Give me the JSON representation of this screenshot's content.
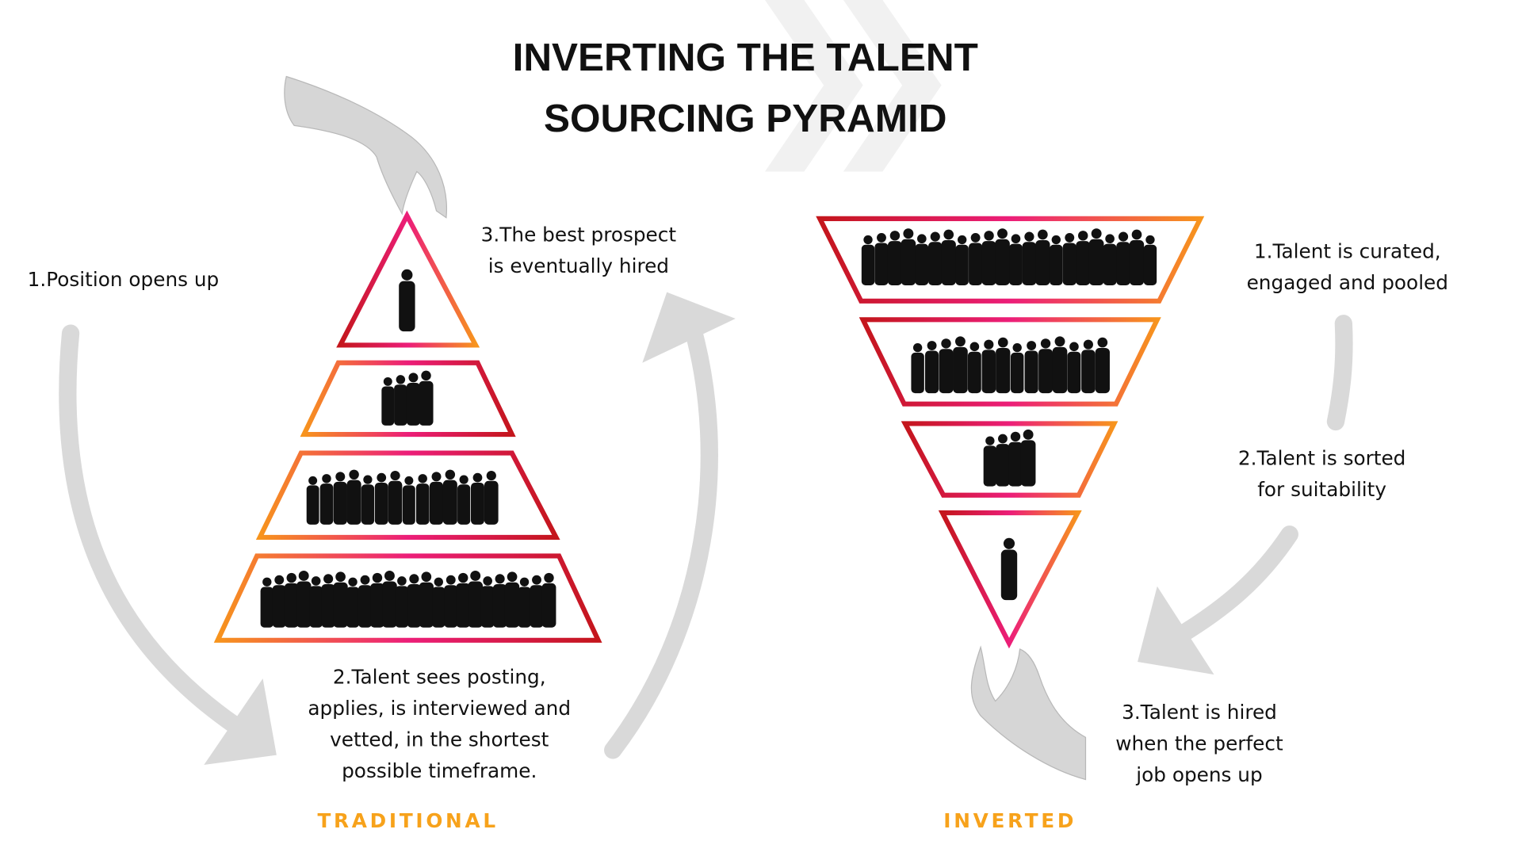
{
  "title": {
    "line1": "INVERTING THE TALENT",
    "line2": "SOURCING PYRAMID"
  },
  "colors": {
    "orange": "#f7941d",
    "pink": "#ec1e79",
    "red": "#c4161c",
    "label_orange": "#f7a21b",
    "arrow_gray": "#d9d9d9",
    "silhouette": "#111111"
  },
  "traditional": {
    "label": "TRADITIONAL",
    "steps": {
      "step1": "1.Position opens up",
      "step2": [
        "2.Talent sees posting,",
        "applies, is interviewed and",
        "vetted, in the shortest",
        "possible timeframe."
      ],
      "step3": [
        "3.The best prospect",
        "is eventually hired"
      ]
    },
    "tiers_people": [
      1,
      4,
      14,
      24
    ]
  },
  "inverted": {
    "label": "INVERTED",
    "steps": {
      "step1": [
        "1.Talent is curated,",
        "engaged and pooled"
      ],
      "step2": [
        "2.Talent is sorted",
        "for suitability"
      ],
      "step3": [
        "3.Talent is hired",
        "when the perfect",
        "job opens up"
      ]
    },
    "tiers_people": [
      22,
      14,
      4,
      1
    ]
  },
  "icons": [
    "hand-picking-icon",
    "hand-receiving-icon",
    "chevron-double-right-icon",
    "person-silhouette-icon",
    "curved-arrow-icon"
  ]
}
